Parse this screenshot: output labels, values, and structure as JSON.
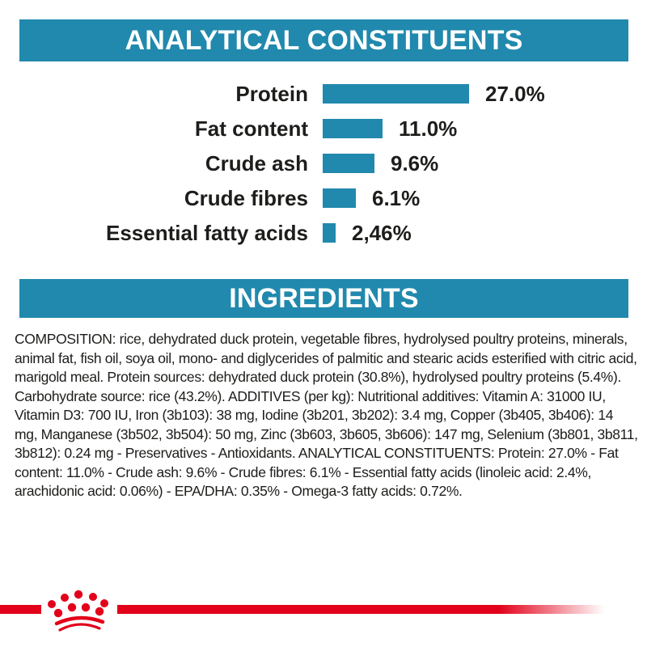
{
  "sections": {
    "analytical_header": "ANALYTICAL CONSTITUENTS",
    "ingredients_header": "INGREDIENTS"
  },
  "chart_data": {
    "type": "bar",
    "orientation": "horizontal",
    "title": "ANALYTICAL CONSTITUENTS",
    "categories": [
      "Protein",
      "Fat content",
      "Crude ash",
      "Crude fibres",
      "Essential fatty acids"
    ],
    "values": [
      27.0,
      11.0,
      9.6,
      6.1,
      2.46
    ],
    "value_labels": [
      "27.0%",
      "11.0%",
      "9.6%",
      "6.1%",
      "2,46%"
    ],
    "bar_color": "#2189ad",
    "xlim": [
      0,
      30
    ],
    "grid": false,
    "legend": false
  },
  "ingredients": {
    "composition": "COMPOSITION: rice, dehydrated duck protein, vegetable fibres, hydrolysed poultry proteins, minerals, animal fat, fish oil, soya oil, mono- and diglycerides of palmitic and stearic acids esterified with citric acid, marigold meal. Protein sources: dehydrated duck protein (30.8%), hydrolysed poultry proteins (5.4%). Carbohydrate source: rice (43.2%). ADDITIVES (per kg): Nutritional additives: Vitamin A: 31000 IU, Vitamin D3: 700 IU, Iron (3b103): 38 mg, Iodine (3b201, 3b202): 3.4 mg, Copper (3b405, 3b406): 14 mg, Manganese (3b502, 3b504): 50 mg, Zinc (3b603, 3b605, 3b606): 147 mg, Selenium (3b801, 3b811, 3b812): 0.24 mg - Preservatives - Antioxidants. ANALYTICAL CONSTITUENTS: Protein: 27.0% - Fat content: 11.0% - Crude ash: 9.6% - Crude fibres: 6.1% - Essential fatty acids (linoleic acid: 2.4%, arachidonic acid: 0.06%) - EPA/DHA: 0.35% - Omega-3 fatty acids: 0.72%."
  },
  "branding": {
    "logo": "royal-canin-crown",
    "brand_red": "#e2001a"
  },
  "colors": {
    "banner_teal": "#2189ad",
    "text_dark": "#1d1d1b",
    "background": "#ffffff"
  }
}
